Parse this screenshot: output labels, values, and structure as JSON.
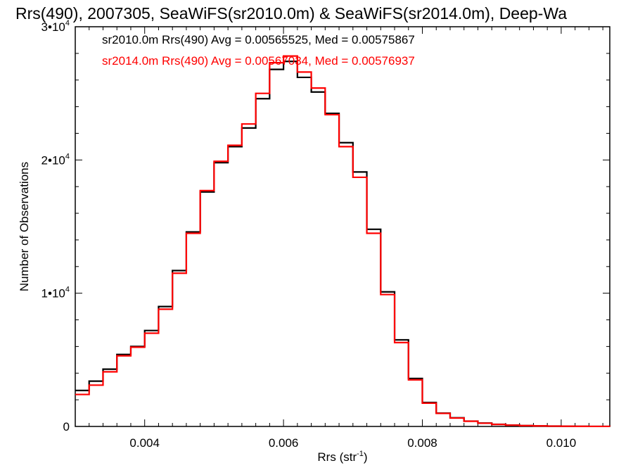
{
  "chart_data": {
    "type": "line",
    "step": true,
    "title": "Rrs(490), 2007305, SeaWiFS(sr2010.0m) & SeaWiFS(sr2014.0m), Deep-Wa",
    "xlabel": "Rrs (str",
    "xlabel_sup": "-1",
    "xlabel_end": ")",
    "ylabel": "Number of Observations",
    "xlim": [
      0.003,
      0.0107
    ],
    "ylim": [
      0,
      30000
    ],
    "x_ticks": [
      {
        "value": 0.004,
        "label": "0.004"
      },
      {
        "value": 0.006,
        "label": "0.006"
      },
      {
        "value": 0.008,
        "label": "0.008"
      },
      {
        "value": 0.01,
        "label": "0.010"
      }
    ],
    "y_ticks": [
      {
        "value": 0,
        "label": "0"
      },
      {
        "value": 10000,
        "label": "1•10",
        "sup": "4"
      },
      {
        "value": 20000,
        "label": "2•10",
        "sup": "4"
      },
      {
        "value": 30000,
        "label": "3•10",
        "sup": "4"
      }
    ],
    "annotations": [
      {
        "text": "sr2010.0m Rrs(490) Avg = 0.00565525, Med = 0.00575867",
        "color": "#000000"
      },
      {
        "text": "sr2014.0m Rrs(490) Avg = 0.00567034, Med = 0.00576937",
        "color": "#ff0000"
      }
    ],
    "series": [
      {
        "color": "#000000",
        "x": [
          0.003,
          0.0032,
          0.0034,
          0.0036,
          0.0038,
          0.004,
          0.0042,
          0.0044,
          0.0046,
          0.0048,
          0.005,
          0.0052,
          0.0054,
          0.0056,
          0.0058,
          0.006,
          0.0062,
          0.0064,
          0.0066,
          0.0068,
          0.007,
          0.0072,
          0.0074,
          0.0076,
          0.0078,
          0.008,
          0.0082,
          0.0084,
          0.0086,
          0.0088,
          0.009,
          0.0092,
          0.0094,
          0.0096,
          0.0098,
          0.01,
          0.0102,
          0.0104,
          0.0107
        ],
        "values": [
          2700,
          3400,
          4300,
          5400,
          6000,
          7200,
          9000,
          11700,
          14600,
          17600,
          19800,
          21000,
          22400,
          24600,
          26800,
          27400,
          26200,
          25100,
          23500,
          21300,
          19100,
          14800,
          10100,
          6500,
          3600,
          1800,
          1000,
          650,
          400,
          250,
          160,
          100,
          60,
          40,
          25,
          15,
          8,
          4,
          0
        ]
      },
      {
        "color": "#ff0000",
        "x": [
          0.003,
          0.0032,
          0.0034,
          0.0036,
          0.0038,
          0.004,
          0.0042,
          0.0044,
          0.0046,
          0.0048,
          0.005,
          0.0052,
          0.0054,
          0.0056,
          0.0058,
          0.006,
          0.0062,
          0.0064,
          0.0066,
          0.0068,
          0.007,
          0.0072,
          0.0074,
          0.0076,
          0.0078,
          0.008,
          0.0082,
          0.0084,
          0.0086,
          0.0088,
          0.009,
          0.0092,
          0.0094,
          0.0096,
          0.0098,
          0.01,
          0.0102,
          0.0104,
          0.0107
        ],
        "values": [
          2400,
          3100,
          4100,
          5300,
          5950,
          7000,
          8800,
          11500,
          14500,
          17700,
          19900,
          21100,
          22700,
          25000,
          27300,
          27800,
          26600,
          25400,
          23400,
          21000,
          18700,
          14500,
          9900,
          6300,
          3500,
          1750,
          980,
          630,
          390,
          240,
          150,
          95,
          58,
          38,
          24,
          14,
          7,
          3,
          0
        ]
      }
    ]
  }
}
